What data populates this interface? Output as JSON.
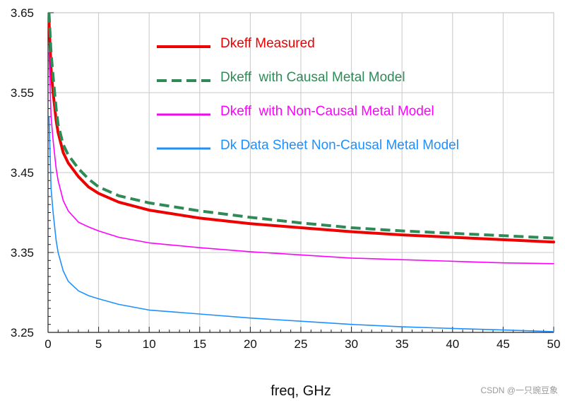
{
  "chart_data": {
    "type": "line",
    "title": "",
    "xlabel": "freq, GHz",
    "ylabel": "",
    "xlim": [
      0,
      50
    ],
    "ylim": [
      3.25,
      3.65
    ],
    "x_ticks": [
      0,
      5,
      10,
      15,
      20,
      25,
      30,
      35,
      40,
      45,
      50
    ],
    "x_tick_labels": [
      "0",
      "5",
      "10",
      "15",
      "20",
      "25",
      "30",
      "35",
      "40",
      "45",
      "50"
    ],
    "y_ticks": [
      3.25,
      3.35,
      3.45,
      3.55,
      3.65
    ],
    "y_tick_labels": [
      "3.25",
      "3.35",
      "3.45",
      "3.55",
      "3.65"
    ],
    "grid": true,
    "legend_position": "top-right",
    "series": [
      {
        "name": "Dkeff Measured",
        "color": "#ee0000",
        "style": "solid",
        "weight": "thick",
        "x": [
          0.1,
          0.3,
          0.5,
          0.8,
          1,
          1.5,
          2,
          3,
          4,
          5,
          7,
          10,
          15,
          20,
          25,
          30,
          35,
          40,
          45,
          50
        ],
        "values": [
          3.64,
          3.58,
          3.55,
          3.515,
          3.5,
          3.475,
          3.462,
          3.445,
          3.432,
          3.424,
          3.413,
          3.403,
          3.393,
          3.386,
          3.381,
          3.376,
          3.372,
          3.369,
          3.366,
          3.363
        ]
      },
      {
        "name": "Dkeff  with Causal Metal Model",
        "color": "#2e8b57",
        "style": "dashed",
        "weight": "thick",
        "x": [
          0.1,
          0.3,
          0.5,
          0.8,
          1,
          1.5,
          2,
          3,
          4,
          5,
          7,
          10,
          15,
          20,
          25,
          30,
          35,
          40,
          45,
          50
        ],
        "values": [
          3.65,
          3.6,
          3.57,
          3.53,
          3.51,
          3.485,
          3.472,
          3.455,
          3.442,
          3.432,
          3.421,
          3.412,
          3.402,
          3.394,
          3.387,
          3.381,
          3.377,
          3.374,
          3.371,
          3.368
        ]
      },
      {
        "name": "Dkeff  with Non-Causal Metal Model",
        "color": "#ff00ff",
        "style": "solid",
        "weight": "thin",
        "x": [
          0.1,
          0.3,
          0.5,
          0.8,
          1,
          1.5,
          2,
          3,
          4,
          5,
          7,
          10,
          15,
          20,
          25,
          30,
          35,
          40,
          45,
          50
        ],
        "values": [
          3.6,
          3.52,
          3.49,
          3.455,
          3.44,
          3.415,
          3.402,
          3.388,
          3.382,
          3.377,
          3.369,
          3.362,
          3.356,
          3.351,
          3.347,
          3.343,
          3.341,
          3.339,
          3.337,
          3.336
        ]
      },
      {
        "name": "Dk Data Sheet Non-Causal Metal Model",
        "color": "#1e90ff",
        "style": "solid",
        "weight": "thin",
        "x": [
          0.1,
          0.3,
          0.5,
          0.8,
          1,
          1.5,
          2,
          3,
          4,
          5,
          7,
          10,
          15,
          20,
          25,
          30,
          35,
          40,
          45,
          50
        ],
        "values": [
          3.52,
          3.43,
          3.4,
          3.365,
          3.35,
          3.327,
          3.314,
          3.302,
          3.296,
          3.292,
          3.285,
          3.278,
          3.273,
          3.268,
          3.264,
          3.26,
          3.257,
          3.255,
          3.253,
          3.251
        ]
      }
    ]
  },
  "watermark": "CSDN @一只豌豆象"
}
